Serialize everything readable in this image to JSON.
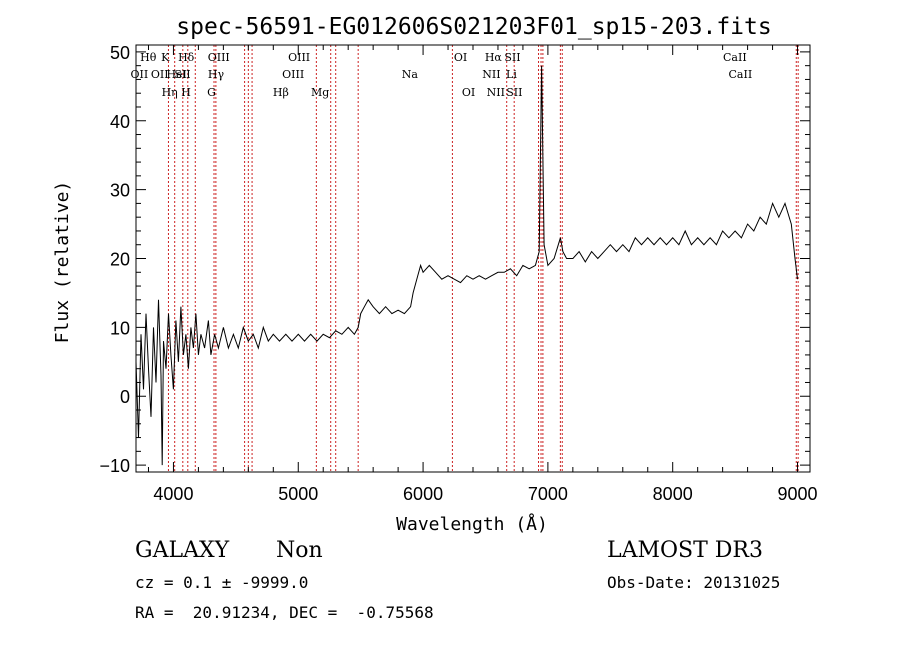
{
  "chart_data": {
    "type": "line",
    "title": "spec-56591-EG012606S021203F01_sp15-203.fits",
    "xlabel": "Wavelength (Å)",
    "ylabel": "Flux (relative)",
    "xlim": [
      3700,
      9100
    ],
    "ylim": [
      -11,
      51
    ],
    "xticks": [
      4000,
      5000,
      6000,
      7000,
      8000,
      9000
    ],
    "yticks": [
      -10,
      0,
      10,
      20,
      30,
      40,
      50
    ],
    "line_color": "#000000",
    "marker_color": "#cc2222",
    "series": [
      {
        "points": [
          [
            3700,
            5
          ],
          [
            3720,
            -6
          ],
          [
            3740,
            9
          ],
          [
            3760,
            1
          ],
          [
            3780,
            12
          ],
          [
            3800,
            4
          ],
          [
            3820,
            -3
          ],
          [
            3840,
            10
          ],
          [
            3860,
            2
          ],
          [
            3880,
            14
          ],
          [
            3900,
            3
          ],
          [
            3910,
            -10
          ],
          [
            3920,
            8
          ],
          [
            3940,
            4
          ],
          [
            3960,
            12
          ],
          [
            3980,
            6
          ],
          [
            4000,
            1
          ],
          [
            4020,
            11
          ],
          [
            4040,
            5
          ],
          [
            4060,
            13
          ],
          [
            4080,
            6
          ],
          [
            4100,
            9
          ],
          [
            4120,
            4
          ],
          [
            4140,
            10
          ],
          [
            4160,
            7
          ],
          [
            4180,
            12
          ],
          [
            4200,
            6
          ],
          [
            4220,
            9
          ],
          [
            4250,
            7
          ],
          [
            4280,
            11
          ],
          [
            4300,
            6
          ],
          [
            4330,
            9
          ],
          [
            4360,
            7
          ],
          [
            4400,
            10
          ],
          [
            4440,
            7
          ],
          [
            4480,
            9
          ],
          [
            4520,
            7
          ],
          [
            4560,
            10
          ],
          [
            4600,
            8
          ],
          [
            4640,
            9
          ],
          [
            4680,
            7
          ],
          [
            4720,
            10
          ],
          [
            4760,
            8
          ],
          [
            4800,
            9
          ],
          [
            4850,
            8
          ],
          [
            4900,
            9
          ],
          [
            4950,
            8
          ],
          [
            5000,
            9
          ],
          [
            5050,
            8
          ],
          [
            5100,
            9
          ],
          [
            5150,
            8
          ],
          [
            5200,
            9
          ],
          [
            5250,
            8.5
          ],
          [
            5300,
            9.5
          ],
          [
            5350,
            9
          ],
          [
            5400,
            10
          ],
          [
            5450,
            9
          ],
          [
            5480,
            10
          ],
          [
            5500,
            12
          ],
          [
            5530,
            13
          ],
          [
            5560,
            14
          ],
          [
            5600,
            13
          ],
          [
            5650,
            12
          ],
          [
            5700,
            13
          ],
          [
            5750,
            12
          ],
          [
            5800,
            12.5
          ],
          [
            5850,
            12
          ],
          [
            5900,
            13
          ],
          [
            5920,
            15
          ],
          [
            5950,
            17
          ],
          [
            5980,
            19
          ],
          [
            6000,
            18
          ],
          [
            6050,
            19
          ],
          [
            6100,
            18
          ],
          [
            6150,
            17
          ],
          [
            6200,
            17.5
          ],
          [
            6250,
            17
          ],
          [
            6300,
            16.5
          ],
          [
            6350,
            17.5
          ],
          [
            6400,
            17
          ],
          [
            6450,
            17.5
          ],
          [
            6500,
            17
          ],
          [
            6550,
            17.5
          ],
          [
            6600,
            18
          ],
          [
            6650,
            18
          ],
          [
            6700,
            18.5
          ],
          [
            6750,
            17.5
          ],
          [
            6800,
            19
          ],
          [
            6850,
            18.5
          ],
          [
            6900,
            19
          ],
          [
            6930,
            21
          ],
          [
            6950,
            48
          ],
          [
            6970,
            22
          ],
          [
            7000,
            19
          ],
          [
            7050,
            20
          ],
          [
            7100,
            23
          ],
          [
            7120,
            21
          ],
          [
            7150,
            20
          ],
          [
            7200,
            20
          ],
          [
            7250,
            21
          ],
          [
            7300,
            19.5
          ],
          [
            7350,
            21
          ],
          [
            7400,
            20
          ],
          [
            7450,
            21
          ],
          [
            7500,
            22
          ],
          [
            7550,
            21
          ],
          [
            7600,
            22
          ],
          [
            7650,
            21
          ],
          [
            7700,
            23
          ],
          [
            7750,
            22
          ],
          [
            7800,
            23
          ],
          [
            7850,
            22
          ],
          [
            7900,
            23
          ],
          [
            7950,
            22
          ],
          [
            8000,
            23
          ],
          [
            8050,
            22
          ],
          [
            8100,
            24
          ],
          [
            8150,
            22
          ],
          [
            8200,
            23
          ],
          [
            8250,
            22
          ],
          [
            8300,
            23
          ],
          [
            8350,
            22
          ],
          [
            8400,
            24
          ],
          [
            8450,
            23
          ],
          [
            8500,
            24
          ],
          [
            8550,
            23
          ],
          [
            8600,
            25
          ],
          [
            8650,
            24
          ],
          [
            8700,
            26
          ],
          [
            8750,
            25
          ],
          [
            8800,
            28
          ],
          [
            8850,
            26
          ],
          [
            8900,
            28
          ],
          [
            8950,
            25
          ],
          [
            8980,
            20
          ],
          [
            9000,
            17
          ]
        ]
      }
    ],
    "lines": [
      {
        "label": "OII",
        "x": 3727,
        "row": 2
      },
      {
        "label": "Hθ",
        "x": 3798,
        "row": 1
      },
      {
        "label": "OII",
        "x": 3890,
        "row": 2
      },
      {
        "label": "Hη",
        "x": 3970,
        "row": 3
      },
      {
        "label": "K",
        "x": 3934,
        "row": 1
      },
      {
        "label": "HeI",
        "x": 4026,
        "row": 2
      },
      {
        "label": "H",
        "x": 4101,
        "row": 3
      },
      {
        "label": "SII",
        "x": 4072,
        "row": 2
      },
      {
        "label": "Hδ",
        "x": 4102,
        "row": 1
      },
      {
        "label": "OIII",
        "x": 4363,
        "row": 1
      },
      {
        "label": "Hγ",
        "x": 4341,
        "row": 2
      },
      {
        "label": "G",
        "x": 4305,
        "row": 3
      },
      {
        "label": "Hβ",
        "x": 4861,
        "row": 3
      },
      {
        "label": "OIII",
        "x": 4959,
        "row": 2
      },
      {
        "label": "OIII",
        "x": 5007,
        "row": 1
      },
      {
        "label": "Mg",
        "x": 5175,
        "row": 3
      },
      {
        "label": "Na",
        "x": 5894,
        "row": 2
      },
      {
        "label": "OI",
        "x": 6300,
        "row": 1
      },
      {
        "label": "OI",
        "x": 6364,
        "row": 3
      },
      {
        "label": "Hα",
        "x": 6563,
        "row": 1
      },
      {
        "label": "NII",
        "x": 6548,
        "row": 2
      },
      {
        "label": "NII",
        "x": 6583,
        "row": 3
      },
      {
        "label": "SII",
        "x": 6716,
        "row": 1
      },
      {
        "label": "Li",
        "x": 6708,
        "row": 2
      },
      {
        "label": "SII",
        "x": 6731,
        "row": 3
      },
      {
        "label": "CaII",
        "x": 8498,
        "row": 1
      },
      {
        "label": "CaII",
        "x": 8542,
        "row": 2
      }
    ],
    "marker_positions": [
      3960,
      4010,
      4075,
      4115,
      4175,
      4325,
      4340,
      4570,
      4600,
      4630,
      5145,
      5260,
      5300,
      5480,
      6235,
      6670,
      6730,
      6925,
      6945,
      6960,
      7100,
      7115,
      8990,
      9005
    ]
  },
  "info": {
    "class": "GALAXY",
    "subclass": "Non",
    "survey": "LAMOST DR3",
    "cz": "cz = 0.1 ± -9999.0",
    "obsdate": "Obs-Date: 20131025",
    "radec": "RA =  20.91234, DEC =  -0.75568"
  }
}
